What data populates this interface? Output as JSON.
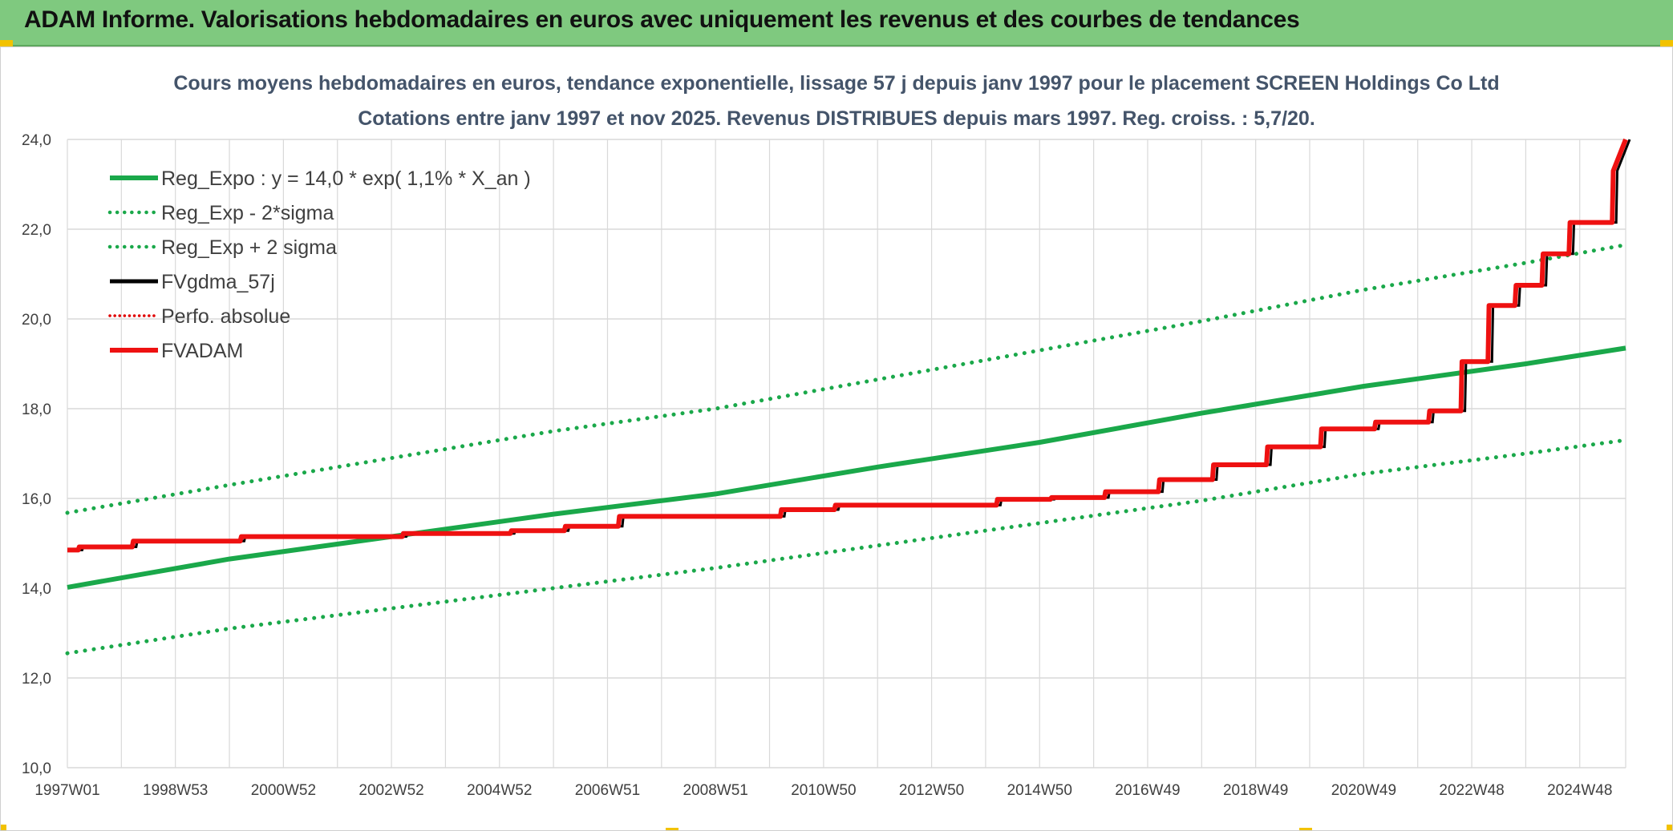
{
  "header": {
    "title": "ADAM Informe. Valorisations hebdomadaires en euros avec uniquement les revenus et des courbes de tendances"
  },
  "colors": {
    "header_bg": "#7fc97f",
    "reg_expo": "#1aa84a",
    "sigma": "#1aa84a",
    "fvgdma": "#000000",
    "perfo": "#e00000",
    "fvadam": "#ee1111",
    "grid": "#d9d9d9"
  },
  "chart_data": {
    "type": "line",
    "title": "Cours moyens hebdomadaires en euros, tendance exponentielle, lissage 57 j depuis janv 1997 pour le placement SCREEN Holdings Co Ltd",
    "subtitle": "Cotations entre janv 1997 et nov 2025. Revenus DISTRIBUES depuis mars 1997. Reg. croiss. : 5,7/20.",
    "x_range": [
      1997.0,
      2025.85
    ],
    "ylim": [
      10,
      24
    ],
    "y_ticks": [
      10,
      12,
      14,
      16,
      18,
      20,
      22,
      24
    ],
    "y_tick_labels": [
      "10,0",
      "12,0",
      "14,0",
      "16,0",
      "18,0",
      "20,0",
      "22,0",
      "24,0"
    ],
    "x_ticks": [
      1997.0,
      1999.0,
      2001.0,
      2003.0,
      2005.0,
      2007.0,
      2009.0,
      2011.0,
      2013.0,
      2015.0,
      2017.0,
      2019.0,
      2021.0,
      2023.0,
      2025.0
    ],
    "x_tick_labels": [
      "1997W01",
      "1998W53",
      "2000W52",
      "2002W52",
      "2004W52",
      "2006W51",
      "2008W51",
      "2010W50",
      "2012W50",
      "2014W50",
      "2016W49",
      "2018W49",
      "2020W49",
      "2022W48",
      "2024W48"
    ],
    "grid": true,
    "legend_position": "top-left",
    "legend": [
      {
        "name": "Reg_Expo : y = 14,0 * exp( 1,1% *  X_an )",
        "style": "solid-thick-green"
      },
      {
        "name": "Reg_Exp - 2*sigma",
        "style": "dotted-green"
      },
      {
        "name": "Reg_Exp + 2 sigma",
        "style": "dotted-green"
      },
      {
        "name": "FVgdma_57j",
        "style": "solid-black"
      },
      {
        "name": "Perfo. absolue",
        "style": "dotted-red"
      },
      {
        "name": "FVADAM",
        "style": "solid-thick-red"
      }
    ],
    "series": [
      {
        "name": "Reg_Expo : y = 14,0 * exp( 1,1% *  X_an )",
        "x": [
          1997.0,
          2000.0,
          2003.0,
          2006.0,
          2009.0,
          2012.0,
          2015.0,
          2018.0,
          2021.0,
          2024.0,
          2025.85
        ],
        "y": [
          14.02,
          14.65,
          15.15,
          15.65,
          16.1,
          16.7,
          17.25,
          17.9,
          18.5,
          19.0,
          19.35
        ]
      },
      {
        "name": "Reg_Exp - 2*sigma",
        "x": [
          1997.0,
          2000.0,
          2003.0,
          2006.0,
          2009.0,
          2012.0,
          2015.0,
          2018.0,
          2021.0,
          2024.0,
          2025.85
        ],
        "y": [
          12.55,
          13.1,
          13.55,
          14.0,
          14.45,
          14.95,
          15.45,
          15.95,
          16.55,
          17.0,
          17.3
        ]
      },
      {
        "name": "Reg_Exp + 2 sigma",
        "x": [
          1997.0,
          2000.0,
          2003.0,
          2006.0,
          2009.0,
          2012.0,
          2015.0,
          2018.0,
          2021.0,
          2024.0,
          2025.85
        ],
        "y": [
          15.68,
          16.3,
          16.9,
          17.5,
          18.0,
          18.65,
          19.3,
          19.95,
          20.65,
          21.25,
          21.65
        ]
      },
      {
        "name": "FVADAM",
        "x": [
          1997.0,
          1997.2,
          1997.22,
          1998.2,
          1998.22,
          2000.2,
          2000.22,
          2003.2,
          2003.22,
          2005.2,
          2005.22,
          2006.2,
          2006.22,
          2007.2,
          2007.22,
          2010.2,
          2010.22,
          2011.2,
          2011.22,
          2014.2,
          2014.22,
          2015.2,
          2015.22,
          2016.2,
          2016.22,
          2017.2,
          2017.22,
          2018.2,
          2018.22,
          2019.2,
          2019.22,
          2020.2,
          2020.22,
          2021.2,
          2021.22,
          2022.2,
          2022.22,
          2022.8,
          2022.82,
          2023.3,
          2023.32,
          2023.8,
          2023.82,
          2024.3,
          2024.32,
          2024.8,
          2024.82,
          2025.6,
          2025.62,
          2025.85
        ],
        "y": [
          14.85,
          14.85,
          14.92,
          14.92,
          15.05,
          15.05,
          15.15,
          15.15,
          15.22,
          15.22,
          15.28,
          15.28,
          15.38,
          15.38,
          15.6,
          15.6,
          15.75,
          15.75,
          15.85,
          15.85,
          15.98,
          15.98,
          16.02,
          16.02,
          16.15,
          16.15,
          16.42,
          16.42,
          16.75,
          16.75,
          17.15,
          17.15,
          17.55,
          17.55,
          17.7,
          17.7,
          17.95,
          17.95,
          19.05,
          19.05,
          20.3,
          20.3,
          20.75,
          20.75,
          21.45,
          21.45,
          22.15,
          22.15,
          23.3,
          24.0
        ]
      }
    ]
  }
}
